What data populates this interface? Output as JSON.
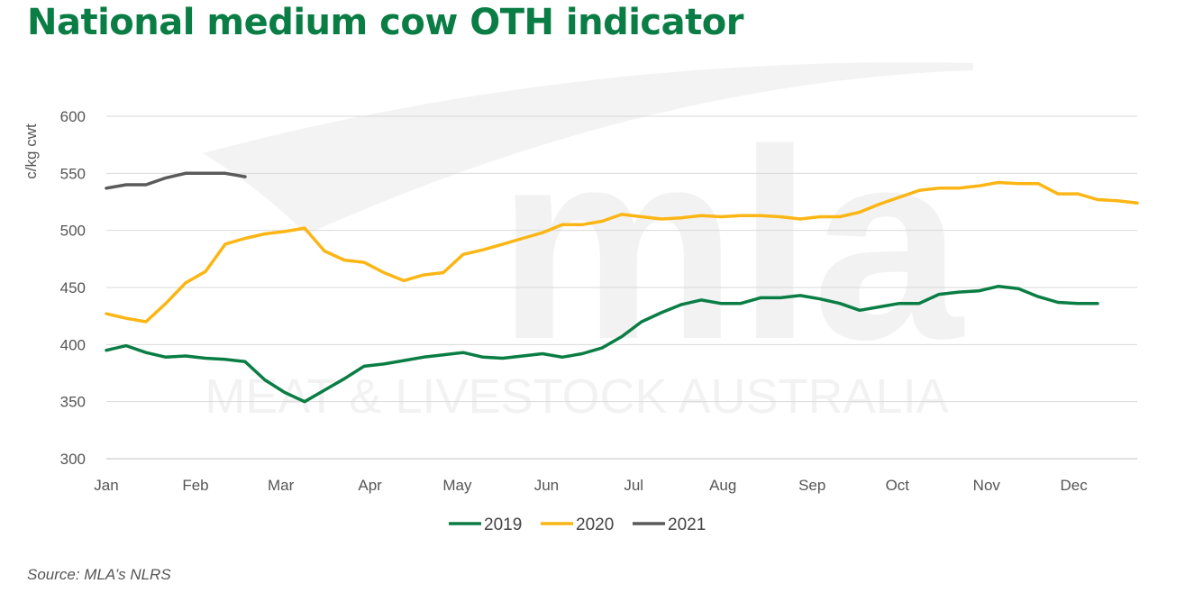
{
  "title": "National medium cow OTH indicator",
  "source": "Source: MLA’s NLRS",
  "watermark": {
    "logo": "mla",
    "text": "MEAT & LIVESTOCK AUSTRALIA"
  },
  "colors": {
    "2019": "#0a7d45",
    "2020": "#fbb615",
    "2021": "#5a5a5a",
    "title": "#0a7d45"
  },
  "chart_data": {
    "type": "line",
    "title": "National medium cow OTH indicator",
    "ylabel": "c/kg cwt",
    "xlabel": "",
    "ylim": [
      300,
      600
    ],
    "yticks": [
      "300",
      "350",
      "400",
      "450",
      "500",
      "550",
      "600"
    ],
    "xlim": [
      0,
      52
    ],
    "month_labels": [
      "Jan",
      "Feb",
      "Mar",
      "Apr",
      "May",
      "Jun",
      "Jul",
      "Aug",
      "Sep",
      "Oct",
      "Nov",
      "Dec"
    ],
    "month_weeks": [
      0,
      4.5,
      8.8,
      13.3,
      17.7,
      22.2,
      26.6,
      31.1,
      35.6,
      39.9,
      44.4,
      48.8
    ],
    "grid": true,
    "legend_position": "bottom",
    "series": [
      {
        "name": "2019",
        "x": [
          0,
          1,
          2,
          3,
          4,
          5,
          6,
          7,
          8,
          9,
          10,
          11,
          12,
          13,
          14,
          15,
          16,
          17,
          18,
          19,
          20,
          21,
          22,
          23,
          24,
          25,
          26,
          27,
          28,
          29,
          30,
          31,
          32,
          33,
          34,
          35,
          36,
          37,
          38,
          39,
          40,
          41,
          42,
          43,
          44,
          45,
          46,
          47,
          48,
          49,
          50
        ],
        "values": [
          395,
          399,
          393,
          389,
          390,
          388,
          387,
          385,
          369,
          358,
          350,
          360,
          370,
          381,
          383,
          386,
          389,
          391,
          393,
          389,
          388,
          390,
          392,
          389,
          392,
          397,
          407,
          420,
          428,
          435,
          439,
          436,
          436,
          441,
          441,
          443,
          440,
          436,
          430,
          433,
          436,
          436,
          444,
          446,
          447,
          451,
          449,
          442,
          437,
          436,
          436
        ]
      },
      {
        "name": "2020",
        "x": [
          0,
          1,
          2,
          3,
          4,
          5,
          6,
          7,
          8,
          9,
          10,
          11,
          12,
          13,
          14,
          15,
          16,
          17,
          18,
          19,
          20,
          21,
          22,
          23,
          24,
          25,
          26,
          27,
          28,
          29,
          30,
          31,
          32,
          33,
          34,
          35,
          36,
          37,
          38,
          39,
          40,
          41,
          42,
          43,
          44,
          45,
          46,
          47,
          48,
          49,
          50,
          51,
          52
        ],
        "values": [
          427,
          423,
          420,
          436,
          454,
          464,
          488,
          493,
          497,
          499,
          502,
          482,
          474,
          472,
          463,
          456,
          461,
          463,
          479,
          483,
          488,
          493,
          498,
          505,
          505,
          508,
          514,
          512,
          510,
          511,
          513,
          512,
          513,
          513,
          512,
          510,
          512,
          512,
          516,
          523,
          529,
          535,
          537,
          537,
          539,
          542,
          541,
          541,
          532,
          532,
          527,
          526,
          524
        ]
      },
      {
        "name": "2021",
        "x": [
          0,
          1,
          2,
          3,
          4,
          5,
          6,
          7
        ],
        "values": [
          537,
          540,
          540,
          546,
          550,
          550,
          550,
          547
        ]
      }
    ]
  }
}
